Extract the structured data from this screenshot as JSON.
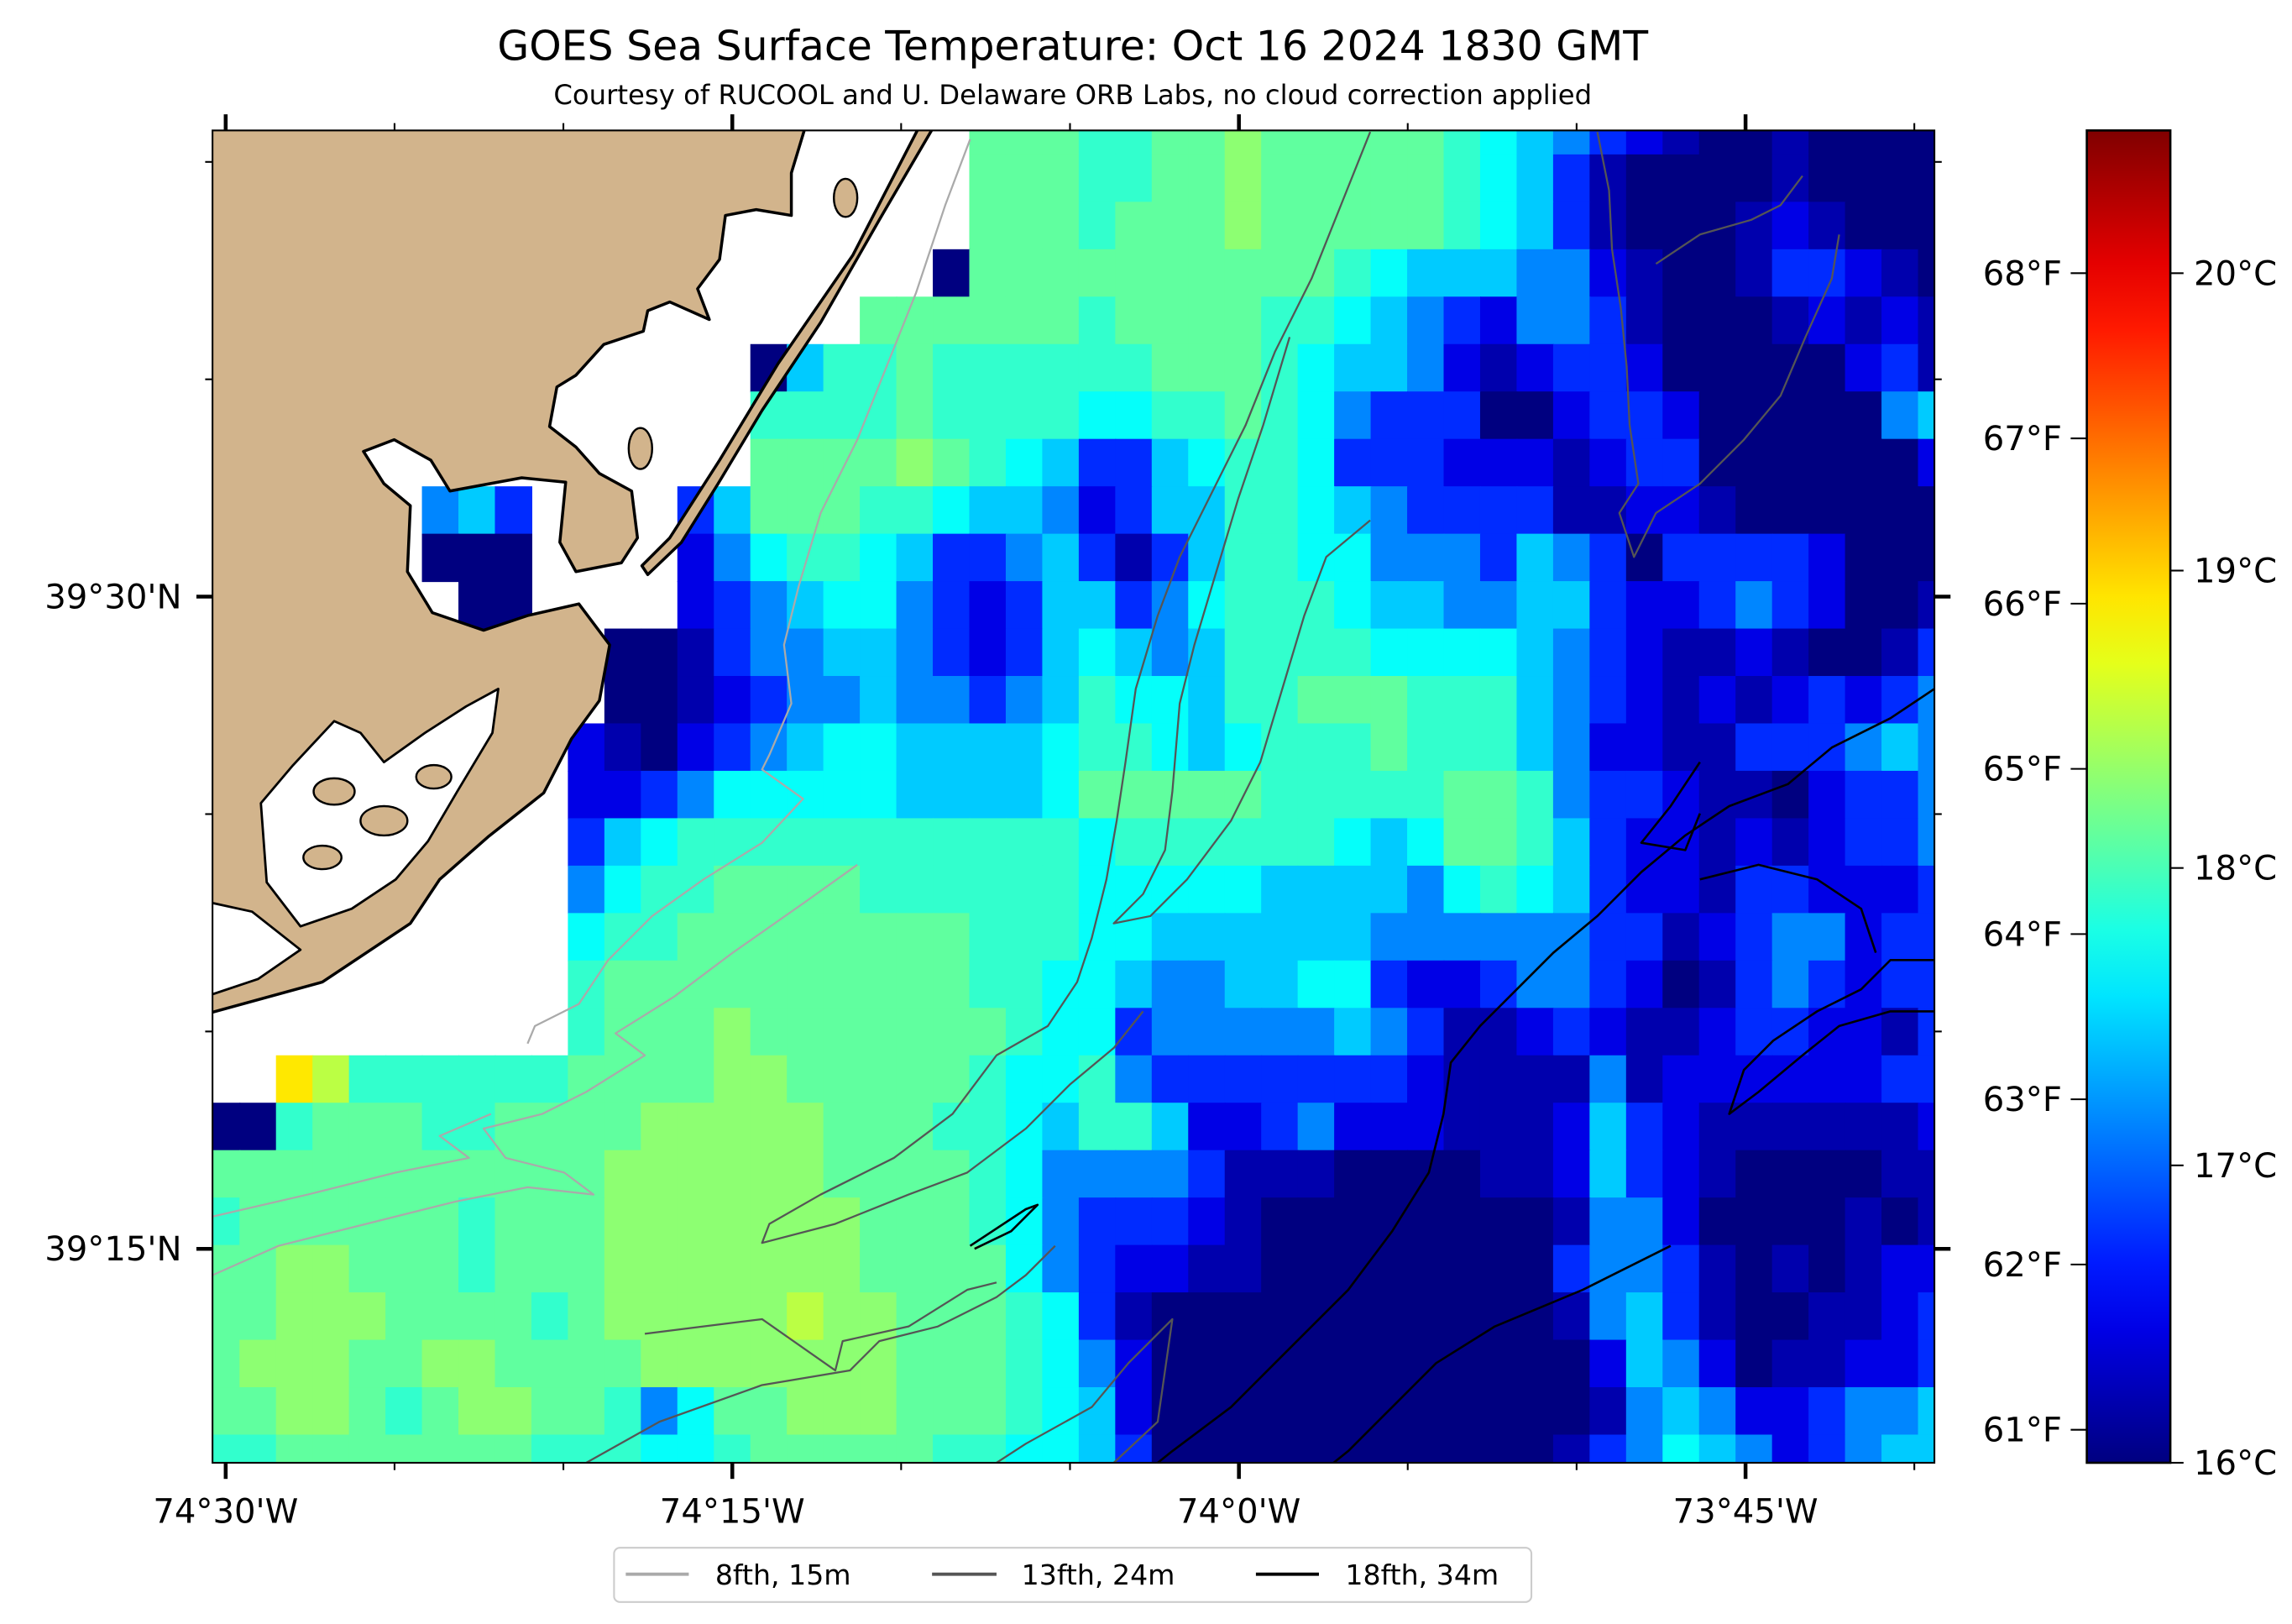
{
  "title": "GOES Sea Surface Temperature: Oct 16 2024 1830 GMT",
  "subtitle": "Courtesy of RUCOOL and U. Delaware ORB Labs, no cloud correction applied",
  "chart_data": {
    "type": "heatmap",
    "title": "GOES Sea Surface Temperature: Oct 16 2024 1830 GMT",
    "subtitle": "Courtesy of RUCOOL and U. Delaware ORB Labs, no cloud correction applied",
    "colormap": "jet",
    "units": "°C",
    "vmin": 16.0,
    "vmax": 20.48,
    "extent": {
      "lon_min": -74.5065,
      "lon_max": -73.6568,
      "lat_min": 39.168,
      "lat_max": 39.6787
    },
    "x_ticks": [
      {
        "label": "74°30'W",
        "lon": -74.5
      },
      {
        "label": "74°15'W",
        "lon": -74.25
      },
      {
        "label": "74°0'W",
        "lon": -74.0
      },
      {
        "label": "73°45'W",
        "lon": -73.75
      }
    ],
    "x_minor_step_deg": 0.08333,
    "y_ticks": [
      {
        "label": "39°30'N",
        "lat": 39.5
      },
      {
        "label": "39°15'N",
        "lat": 39.25
      }
    ],
    "y_minor_step_deg": 0.08333,
    "colorbar_c_ticks": [
      {
        "label": "16°C",
        "value": 16
      },
      {
        "label": "17°C",
        "value": 17
      },
      {
        "label": "18°C",
        "value": 18
      },
      {
        "label": "19°C",
        "value": 19
      },
      {
        "label": "20°C",
        "value": 20
      }
    ],
    "colorbar_f_ticks": [
      {
        "label": "61°F",
        "value": 61
      },
      {
        "label": "62°F",
        "value": 62
      },
      {
        "label": "63°F",
        "value": 63
      },
      {
        "label": "64°F",
        "value": 64
      },
      {
        "label": "65°F",
        "value": 65
      },
      {
        "label": "66°F",
        "value": 66
      },
      {
        "label": "67°F",
        "value": 67
      },
      {
        "label": "68°F",
        "value": 68
      }
    ],
    "legend": {
      "placement": "bottom-center",
      "entries": [
        {
          "label": "8fth, 15m",
          "color": "#aaaaaa"
        },
        {
          "label": "13fth, 24m",
          "color": "#555555"
        },
        {
          "label": "18fth, 34m",
          "color": "#000000"
        }
      ]
    },
    "land_color": "#d2b48c",
    "grid": {
      "note": "rows north to south, columns west to east; '-' = no data",
      "level_temps_c": {
        "0": 16.0,
        "1": 16.2,
        "2": 16.45,
        "3": 16.75,
        "4": 17.15,
        "5": 17.45,
        "6": 17.7,
        "7": 17.9,
        "8": 18.1,
        "9": 18.3,
        "a": 18.5,
        "y": 18.9
      },
      "rows": [
        "---------------------888778898888876543210010000",
        "---------------------888778898888876531000010000",
        "---------------------888788898888876531000121000",
        "--------------------0888888888876555442100133210",
        "------------------888888788887765432443100012121",
        "---------------057787777778887655421233200000231",
        "---------------777787777667787643330023320000045",
        "---------------888898765335677633322212330000002",
        "------453----35888776554235577654333311221000000",
        "------000----24677653345313577664443543033332000",
        "-------00----23456643235534677765544553223432001",
        "-----------0013445543235654577776666543211210013",
        "-----------0012344544345766577888777543212123234",
        "----------21023456655556776567778777542211333454",
        "----------22346666655556888887777788743321102334",
        "----------35677777777777677777765688753221212334",
        "----------46778888777777666665555467653221332223",
        "----------67788888888777665555554444443312344233",
        "----------78888888888776654455663223443201343233",
        "----------78889888888876634444454311232112332213",
        "--ya77777788889988888766743333333211114122222233",
        "007888778888999998887765775223422211125321111112",
        "888888888889999998888764444311100001125321000011",
        "788888878889999999888764333210000000014420000101",
        "889988878889999999888864322110000000034431010122",
        "8899988887899999a9988876310000000000014531001123",
        "899988998888999999988876420000000000002542011223",
        "889987899887468899988876520000000000001454223445",
        "778888888777667888887766530000000000013465423455"
      ]
    }
  }
}
